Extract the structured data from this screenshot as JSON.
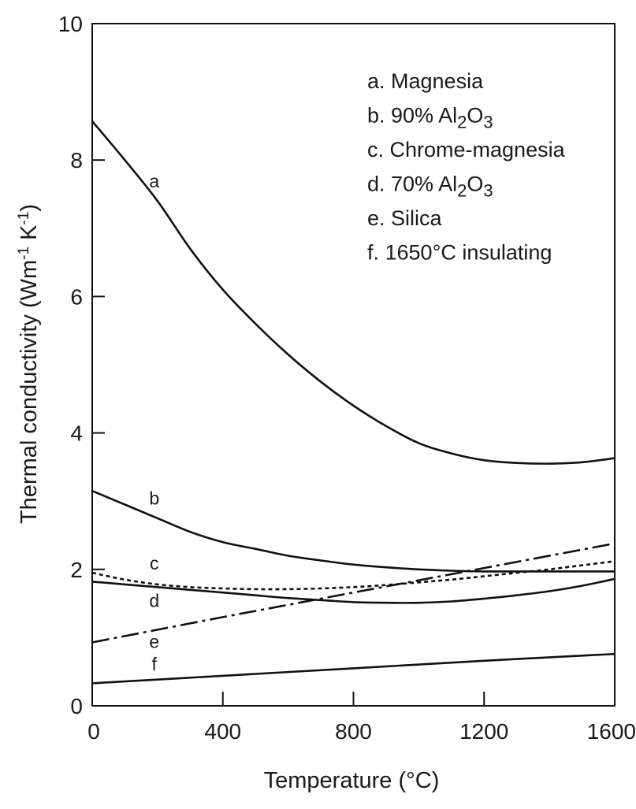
{
  "chart_data": {
    "type": "line",
    "title": "",
    "xlabel": "Temperature (°C)",
    "ylabel": "Thermal conductivity (Wm⁻¹ K⁻¹)",
    "xlim": [
      0,
      1600
    ],
    "ylim": [
      0,
      10
    ],
    "x_ticks": [
      0,
      400,
      800,
      1200,
      1600
    ],
    "y_ticks": [
      0,
      2,
      4,
      6,
      8,
      10
    ],
    "grid": false,
    "legend_placement": "top-right",
    "series": [
      {
        "id": "a",
        "name": "a. Magnesia",
        "label": "a",
        "dash": "solid",
        "x": [
          0,
          100,
          200,
          300,
          400,
          500,
          600,
          700,
          800,
          900,
          1000,
          1100,
          1200,
          1300,
          1400,
          1500,
          1600
        ],
        "y": [
          8.57,
          8.0,
          7.4,
          6.7,
          6.1,
          5.6,
          5.15,
          4.75,
          4.4,
          4.1,
          3.85,
          3.7,
          3.6,
          3.56,
          3.55,
          3.57,
          3.63
        ]
      },
      {
        "id": "b",
        "name": "b. 90% Al2O3",
        "label": "b",
        "dash": "solid",
        "x": [
          0,
          100,
          200,
          300,
          400,
          500,
          600,
          700,
          800,
          900,
          1000,
          1100,
          1200,
          1300,
          1400,
          1500,
          1600
        ],
        "y": [
          3.15,
          2.95,
          2.75,
          2.55,
          2.4,
          2.3,
          2.2,
          2.13,
          2.07,
          2.03,
          2.0,
          1.98,
          1.97,
          1.97,
          1.97,
          1.97,
          1.97
        ]
      },
      {
        "id": "c",
        "name": "c. Chrome-magnesia",
        "label": "c",
        "dash": "dotted",
        "x": [
          0,
          100,
          200,
          300,
          400,
          500,
          600,
          700,
          800,
          900,
          1000,
          1100,
          1200,
          1300,
          1400,
          1500,
          1600
        ],
        "y": [
          1.95,
          1.85,
          1.78,
          1.74,
          1.72,
          1.71,
          1.71,
          1.72,
          1.74,
          1.77,
          1.81,
          1.85,
          1.9,
          1.95,
          2.0,
          2.06,
          2.12
        ]
      },
      {
        "id": "d",
        "name": "d. 70% Al2O3",
        "label": "d",
        "dash": "solid",
        "x": [
          0,
          100,
          200,
          300,
          400,
          500,
          600,
          700,
          800,
          900,
          1000,
          1100,
          1200,
          1300,
          1400,
          1500,
          1600
        ],
        "y": [
          1.82,
          1.78,
          1.74,
          1.7,
          1.66,
          1.62,
          1.58,
          1.55,
          1.52,
          1.51,
          1.51,
          1.53,
          1.57,
          1.62,
          1.68,
          1.76,
          1.86
        ]
      },
      {
        "id": "e",
        "name": "e. Silica",
        "label": "e",
        "dash": "dashdot",
        "x": [
          0,
          400,
          800,
          1200,
          1600
        ],
        "y": [
          0.93,
          1.3,
          1.66,
          2.02,
          2.38
        ]
      },
      {
        "id": "f",
        "name": "f. 1650°C insulating",
        "label": "f",
        "dash": "solid",
        "x": [
          0,
          400,
          800,
          1200,
          1600
        ],
        "y": [
          0.33,
          0.44,
          0.55,
          0.66,
          0.76
        ]
      }
    ],
    "legend": [
      {
        "prefix": "a. Magnesia",
        "sub": "",
        "suffix": ""
      },
      {
        "prefix": "b. 90% Al",
        "sub": "2",
        "suffix": "O",
        "sub2": "3"
      },
      {
        "prefix": "c. Chrome-magnesia",
        "sub": "",
        "suffix": ""
      },
      {
        "prefix": "d. 70% Al",
        "sub": "2",
        "suffix": "O",
        "sub2": "3"
      },
      {
        "prefix": "e. Silica",
        "sub": "",
        "suffix": ""
      },
      {
        "prefix": "f. 1650°C insulating",
        "sub": "",
        "suffix": ""
      }
    ],
    "curve_labels": [
      {
        "text": "a",
        "x": 190,
        "y": 7.6
      },
      {
        "text": "b",
        "x": 190,
        "y": 2.95
      },
      {
        "text": "c",
        "x": 190,
        "y": 2.0
      },
      {
        "text": "d",
        "x": 190,
        "y": 1.45
      },
      {
        "text": "e",
        "x": 190,
        "y": 0.85
      },
      {
        "text": "f",
        "x": 190,
        "y": 0.52
      }
    ]
  }
}
